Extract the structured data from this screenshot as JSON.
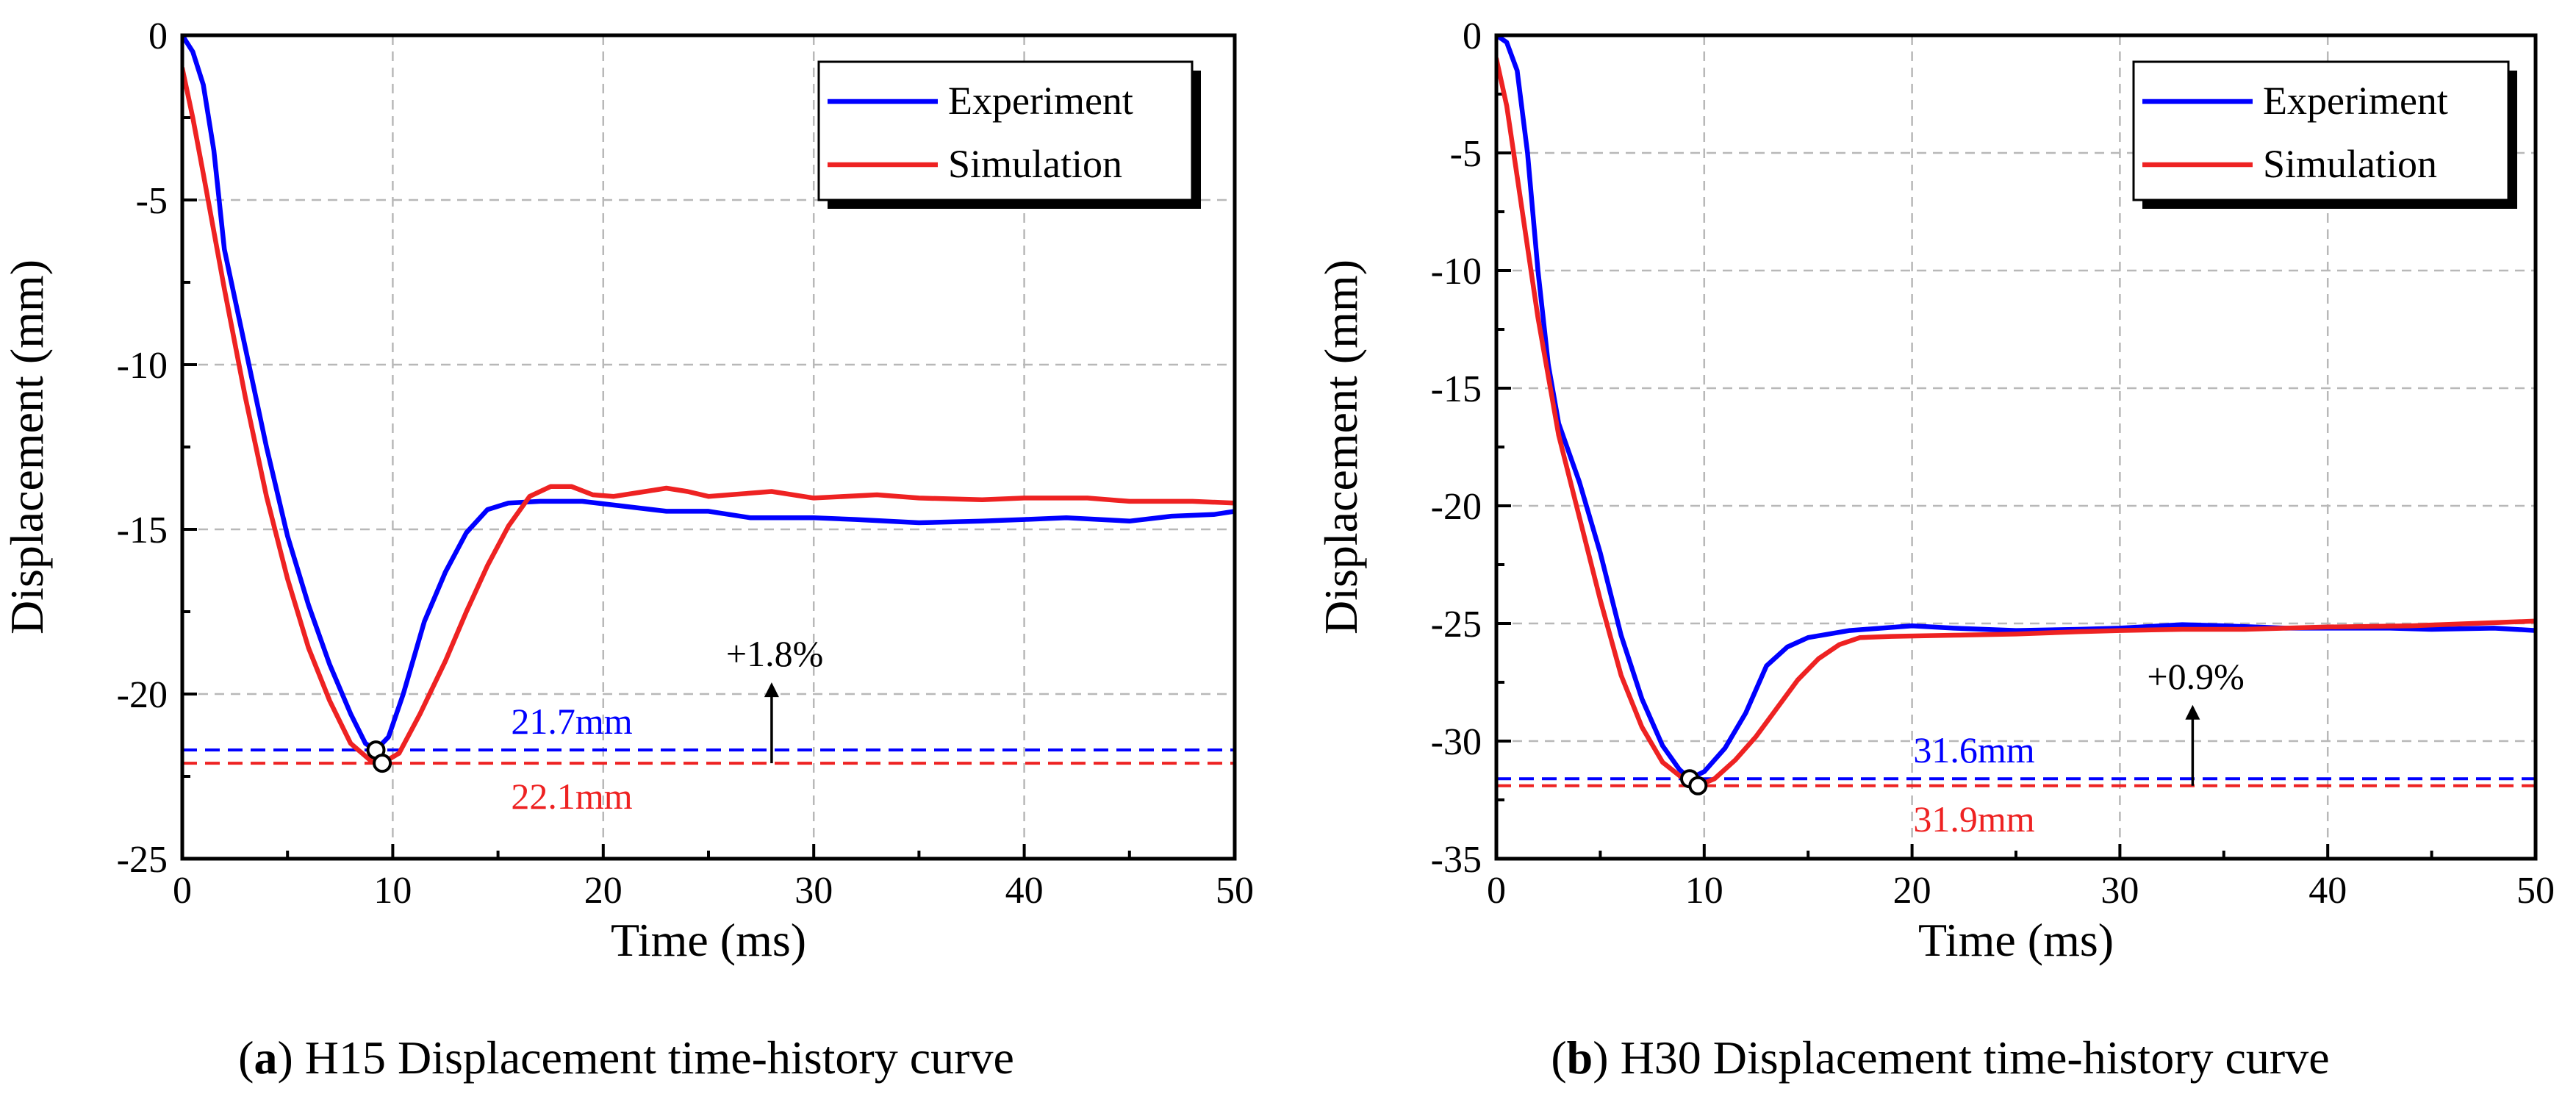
{
  "chart_data": [
    {
      "type": "line",
      "panel_letter": "a",
      "caption": "H15 Displacement time-history curve",
      "xlabel": "Time (ms)",
      "ylabel": "Displacement (mm)",
      "xlim": [
        0,
        50
      ],
      "ylim": [
        -25,
        0
      ],
      "x_ticks": [
        0,
        10,
        20,
        30,
        40,
        50
      ],
      "y_ticks": [
        0,
        -5,
        -10,
        -15,
        -20,
        -25
      ],
      "grid": true,
      "legend_position": "top-right",
      "series": [
        {
          "name": "Experiment",
          "color": "#0000ff",
          "points": [
            [
              0,
              0
            ],
            [
              0.5,
              -0.5
            ],
            [
              1,
              -1.5
            ],
            [
              1.5,
              -3.5
            ],
            [
              2,
              -6.5
            ],
            [
              3,
              -9.5
            ],
            [
              4,
              -12.5
            ],
            [
              5,
              -15.2
            ],
            [
              6,
              -17.3
            ],
            [
              7,
              -19.1
            ],
            [
              8,
              -20.6
            ],
            [
              8.7,
              -21.5
            ],
            [
              9.2,
              -21.7
            ],
            [
              9.8,
              -21.3
            ],
            [
              10.5,
              -20
            ],
            [
              11.5,
              -17.8
            ],
            [
              12.5,
              -16.3
            ],
            [
              13.5,
              -15.1
            ],
            [
              14.5,
              -14.4
            ],
            [
              15.5,
              -14.2
            ],
            [
              17,
              -14.15
            ],
            [
              19,
              -14.15
            ],
            [
              21,
              -14.3
            ],
            [
              23,
              -14.45
            ],
            [
              25,
              -14.45
            ],
            [
              27,
              -14.65
            ],
            [
              30,
              -14.65
            ],
            [
              32,
              -14.7
            ],
            [
              35,
              -14.8
            ],
            [
              38,
              -14.75
            ],
            [
              40,
              -14.7
            ],
            [
              42,
              -14.65
            ],
            [
              45,
              -14.75
            ],
            [
              47,
              -14.6
            ],
            [
              49,
              -14.55
            ],
            [
              50,
              -14.45
            ]
          ]
        },
        {
          "name": "Simulation",
          "color": "#ee2222",
          "points": [
            [
              0,
              -1
            ],
            [
              0.5,
              -2.5
            ],
            [
              1,
              -4.2
            ],
            [
              2,
              -7.7
            ],
            [
              3,
              -11
            ],
            [
              4,
              -14
            ],
            [
              5,
              -16.5
            ],
            [
              6,
              -18.6
            ],
            [
              7,
              -20.2
            ],
            [
              8,
              -21.5
            ],
            [
              9,
              -22.05
            ],
            [
              9.5,
              -22.1
            ],
            [
              10.3,
              -21.8
            ],
            [
              11.3,
              -20.6
            ],
            [
              12.5,
              -19
            ],
            [
              13.5,
              -17.5
            ],
            [
              14.5,
              -16.1
            ],
            [
              15.5,
              -14.9
            ],
            [
              16.5,
              -14
            ],
            [
              17.5,
              -13.7
            ],
            [
              18.5,
              -13.7
            ],
            [
              19.5,
              -13.95
            ],
            [
              20.5,
              -14
            ],
            [
              22,
              -13.85
            ],
            [
              23,
              -13.75
            ],
            [
              24,
              -13.85
            ],
            [
              25,
              -14
            ],
            [
              26,
              -13.95
            ],
            [
              28,
              -13.85
            ],
            [
              30,
              -14.05
            ],
            [
              33,
              -13.95
            ],
            [
              35,
              -14.05
            ],
            [
              38,
              -14.1
            ],
            [
              40,
              -14.05
            ],
            [
              43,
              -14.05
            ],
            [
              45,
              -14.15
            ],
            [
              48,
              -14.15
            ],
            [
              50,
              -14.2
            ]
          ]
        }
      ],
      "ref_lines": [
        {
          "label": "21.7mm",
          "value": -21.7,
          "color": "#0000ff"
        },
        {
          "label": "22.1mm",
          "value": -22.1,
          "color": "#ee2222"
        }
      ],
      "markers": [
        [
          9.2,
          -21.7
        ],
        [
          9.5,
          -22.1
        ]
      ],
      "annotation": {
        "text": "+1.8%",
        "x": 28
      }
    },
    {
      "type": "line",
      "panel_letter": "b",
      "caption": "H30 Displacement time-history curve",
      "xlabel": "Time (ms)",
      "ylabel": "Displacement (mm)",
      "xlim": [
        0,
        50
      ],
      "ylim": [
        -35,
        0
      ],
      "x_ticks": [
        0,
        10,
        20,
        30,
        40,
        50
      ],
      "y_ticks": [
        0,
        -5,
        -10,
        -15,
        -20,
        -25,
        -30,
        -35
      ],
      "grid": true,
      "legend_position": "top-right",
      "series": [
        {
          "name": "Experiment",
          "color": "#0000ff",
          "points": [
            [
              0,
              0
            ],
            [
              0.5,
              -0.3
            ],
            [
              1,
              -1.5
            ],
            [
              1.5,
              -5
            ],
            [
              2,
              -10
            ],
            [
              2.5,
              -14
            ],
            [
              3,
              -16.5
            ],
            [
              4,
              -19
            ],
            [
              5,
              -22
            ],
            [
              6,
              -25.5
            ],
            [
              7,
              -28.2
            ],
            [
              8,
              -30.2
            ],
            [
              8.8,
              -31.2
            ],
            [
              9.3,
              -31.6
            ],
            [
              10,
              -31.3
            ],
            [
              11,
              -30.3
            ],
            [
              12,
              -28.8
            ],
            [
              13,
              -26.8
            ],
            [
              14,
              -26
            ],
            [
              15,
              -25.6
            ],
            [
              17,
              -25.3
            ],
            [
              20,
              -25.1
            ],
            [
              22,
              -25.2
            ],
            [
              25,
              -25.3
            ],
            [
              28,
              -25.25
            ],
            [
              30,
              -25.2
            ],
            [
              33,
              -25.05
            ],
            [
              35,
              -25.1
            ],
            [
              38,
              -25.2
            ],
            [
              40,
              -25.2
            ],
            [
              43,
              -25.2
            ],
            [
              45,
              -25.25
            ],
            [
              48,
              -25.2
            ],
            [
              50,
              -25.3
            ]
          ]
        },
        {
          "name": "Simulation",
          "color": "#ee2222",
          "points": [
            [
              0,
              -1
            ],
            [
              0.5,
              -3
            ],
            [
              1,
              -6
            ],
            [
              1.5,
              -9
            ],
            [
              2,
              -12
            ],
            [
              3,
              -17
            ],
            [
              4,
              -20.5
            ],
            [
              5,
              -24
            ],
            [
              6,
              -27.2
            ],
            [
              7,
              -29.4
            ],
            [
              8,
              -30.9
            ],
            [
              9,
              -31.6
            ],
            [
              9.7,
              -31.9
            ],
            [
              10.5,
              -31.6
            ],
            [
              11.5,
              -30.8
            ],
            [
              12.5,
              -29.8
            ],
            [
              13.5,
              -28.6
            ],
            [
              14.5,
              -27.4
            ],
            [
              15.5,
              -26.5
            ],
            [
              16.5,
              -25.9
            ],
            [
              17.5,
              -25.6
            ],
            [
              19,
              -25.55
            ],
            [
              22,
              -25.5
            ],
            [
              25,
              -25.45
            ],
            [
              28,
              -25.35
            ],
            [
              30,
              -25.3
            ],
            [
              33,
              -25.25
            ],
            [
              36,
              -25.25
            ],
            [
              40,
              -25.15
            ],
            [
              44,
              -25.1
            ],
            [
              47,
              -25
            ],
            [
              50,
              -24.9
            ]
          ]
        }
      ],
      "ref_lines": [
        {
          "label": "31.6mm",
          "value": -31.6,
          "color": "#0000ff"
        },
        {
          "label": "31.9mm",
          "value": -31.9,
          "color": "#ee2222"
        }
      ],
      "markers": [
        [
          9.3,
          -31.6
        ],
        [
          9.7,
          -31.9
        ]
      ],
      "annotation": {
        "text": "+0.9%",
        "x": 33.5
      }
    }
  ]
}
